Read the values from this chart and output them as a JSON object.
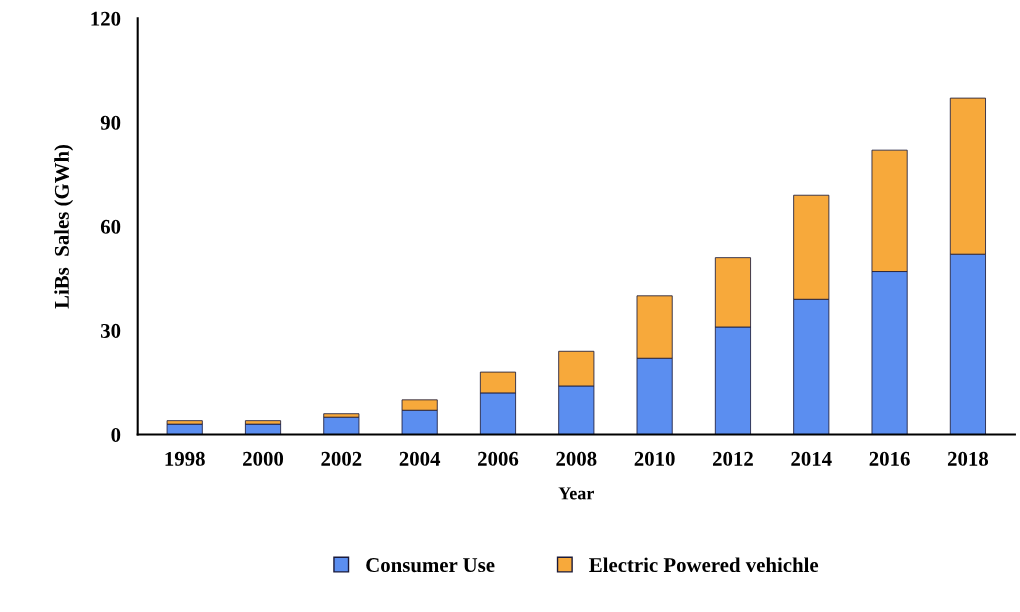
{
  "chart_data": {
    "type": "bar",
    "stacked": true,
    "xlabel": "Year",
    "ylabel": "LiBs  Sales (GWh)",
    "categories": [
      "1998",
      "2000",
      "2002",
      "2004",
      "2006",
      "2008",
      "2010",
      "2012",
      "2014",
      "2016",
      "2018"
    ],
    "series": [
      {
        "name": "Consumer Use",
        "color": "#5b8ef0",
        "values": [
          3,
          3,
          5,
          7,
          12,
          14,
          22,
          31,
          39,
          47,
          52
        ]
      },
      {
        "name": "Electric Powered vehichle",
        "color": "#f7a93b",
        "values": [
          1,
          1,
          1,
          3,
          6,
          10,
          18,
          20,
          30,
          35,
          45
        ]
      }
    ],
    "ylim": [
      0,
      120
    ],
    "yticks": [
      0,
      30,
      60,
      90,
      120
    ],
    "grid": false,
    "legend": "bottom"
  }
}
